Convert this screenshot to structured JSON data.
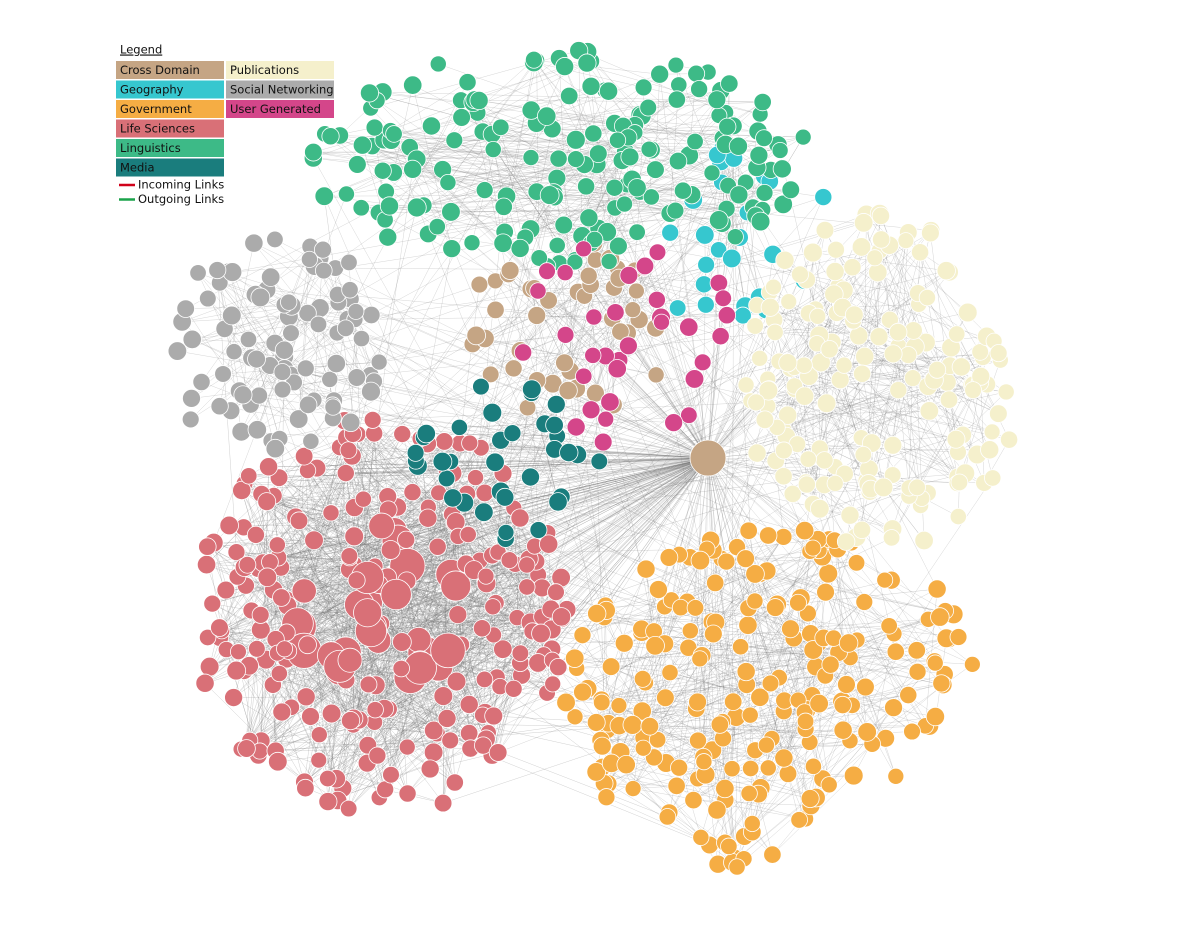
{
  "legend": {
    "title": "Legend",
    "categories": [
      {
        "label": "Cross Domain",
        "color": "#c5a584"
      },
      {
        "label": "Geography",
        "color": "#36c7cf"
      },
      {
        "label": "Government",
        "color": "#f5ad44"
      },
      {
        "label": "Life Sciences",
        "color": "#d97077"
      },
      {
        "label": "Linguistics",
        "color": "#3dba87"
      },
      {
        "label": "Media",
        "color": "#1a7d7d"
      },
      {
        "label": "Publications",
        "color": "#f5f0cc"
      },
      {
        "label": "Social Networking",
        "color": "#ababab"
      },
      {
        "label": "User Generated",
        "color": "#d4468a"
      }
    ],
    "links": [
      {
        "label": "Incoming Links",
        "color": "#d0021b"
      },
      {
        "label": "Outgoing Links",
        "color": "#1aa34a"
      }
    ]
  }
}
